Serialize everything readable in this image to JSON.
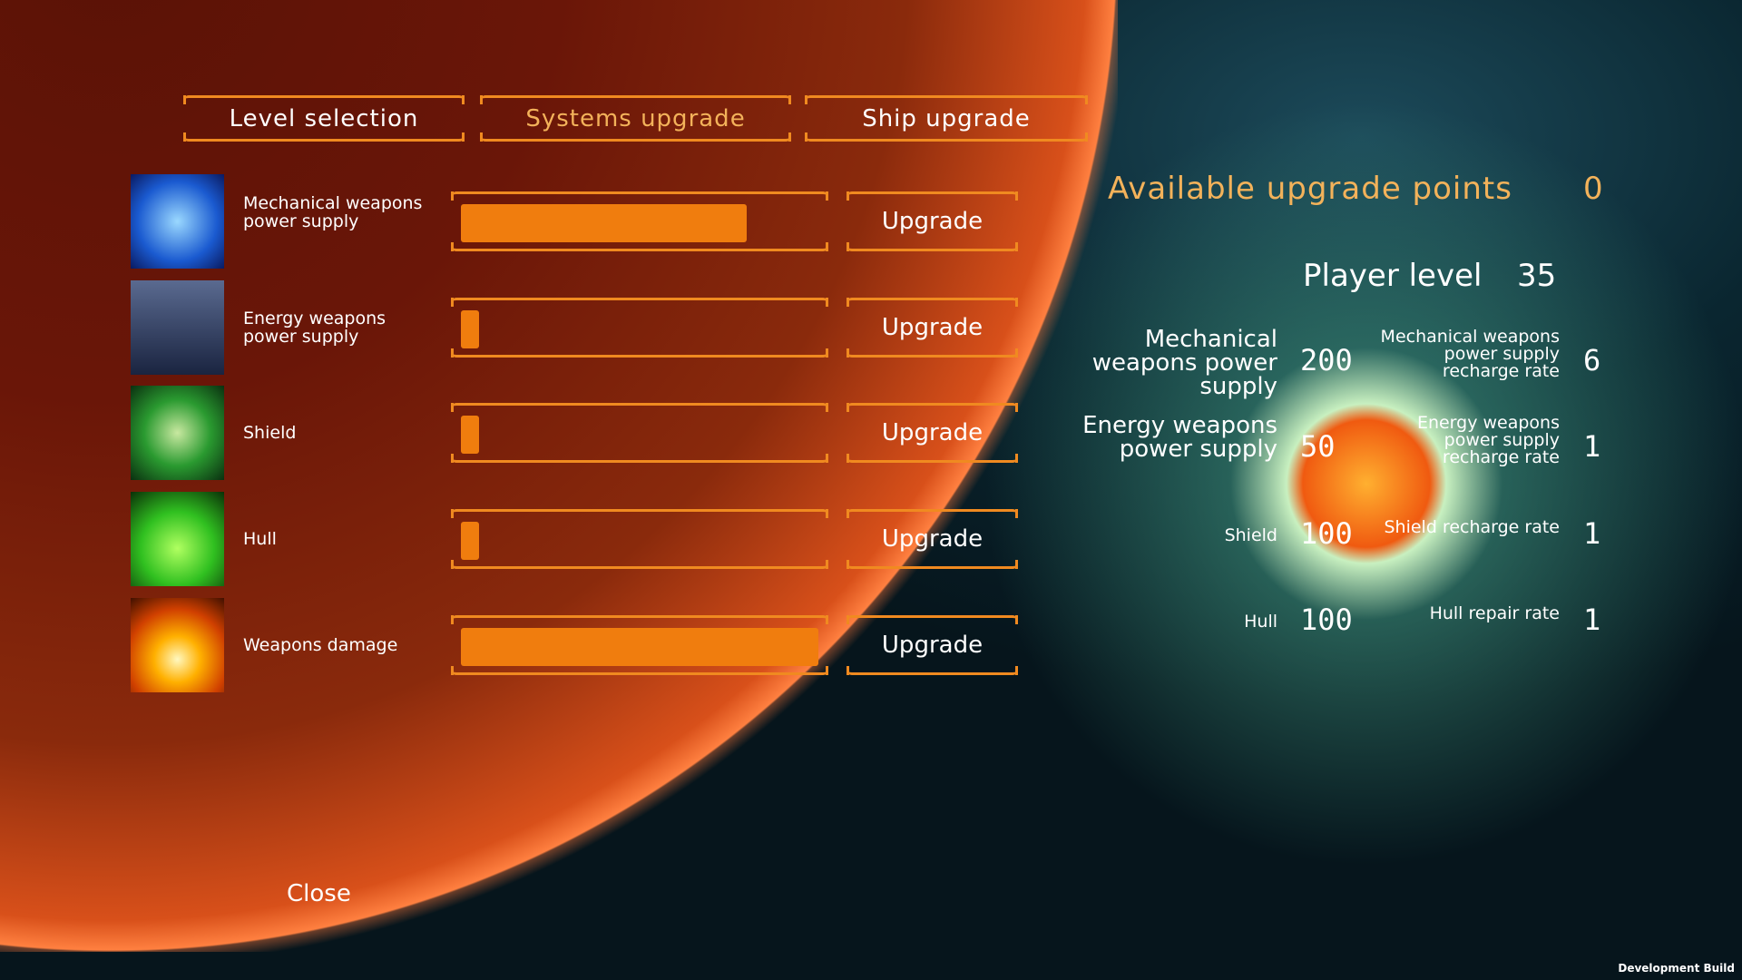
{
  "tabs": [
    {
      "label": "Level selection"
    },
    {
      "label": "Systems upgrade",
      "active": true
    },
    {
      "label": "Ship upgrade"
    }
  ],
  "systems": [
    {
      "label": "Mechanical weapons power supply",
      "icon": "arrow-icon",
      "progress": 0.8,
      "button": "Upgrade"
    },
    {
      "label": "Energy weapons power supply",
      "icon": "robots-icon",
      "progress": 0.05,
      "button": "Upgrade"
    },
    {
      "label": "Shield",
      "icon": "shield-scroll-icon",
      "progress": 0.05,
      "button": "Upgrade"
    },
    {
      "label": "Hull",
      "icon": "hull-slime-icon",
      "progress": 0.05,
      "button": "Upgrade"
    },
    {
      "label": "Weapons damage",
      "icon": "explosion-icon",
      "progress": 1.0,
      "button": "Upgrade"
    }
  ],
  "points": {
    "label": "Available upgrade points",
    "value": "0"
  },
  "player": {
    "label": "Player level",
    "value": "35"
  },
  "stats": [
    {
      "label": "Mechanical weapons power supply",
      "value": "200",
      "rate_label": "Mechanical weapons power supply recharge rate",
      "rate": "6"
    },
    {
      "label": "Energy weapons power supply",
      "value": "50",
      "rate_label": "Energy weapons power supply recharge rate",
      "rate": "1"
    },
    {
      "label": "Shield",
      "value": "100",
      "rate_label": "Shield recharge rate",
      "rate": "1"
    },
    {
      "label": "Hull",
      "value": "100",
      "rate_label": "Hull repair rate",
      "rate": "1"
    }
  ],
  "close": "Close",
  "build": "Development Build",
  "colors": {
    "accent": "#f07d0e",
    "active_tab": "#f3b25a"
  }
}
